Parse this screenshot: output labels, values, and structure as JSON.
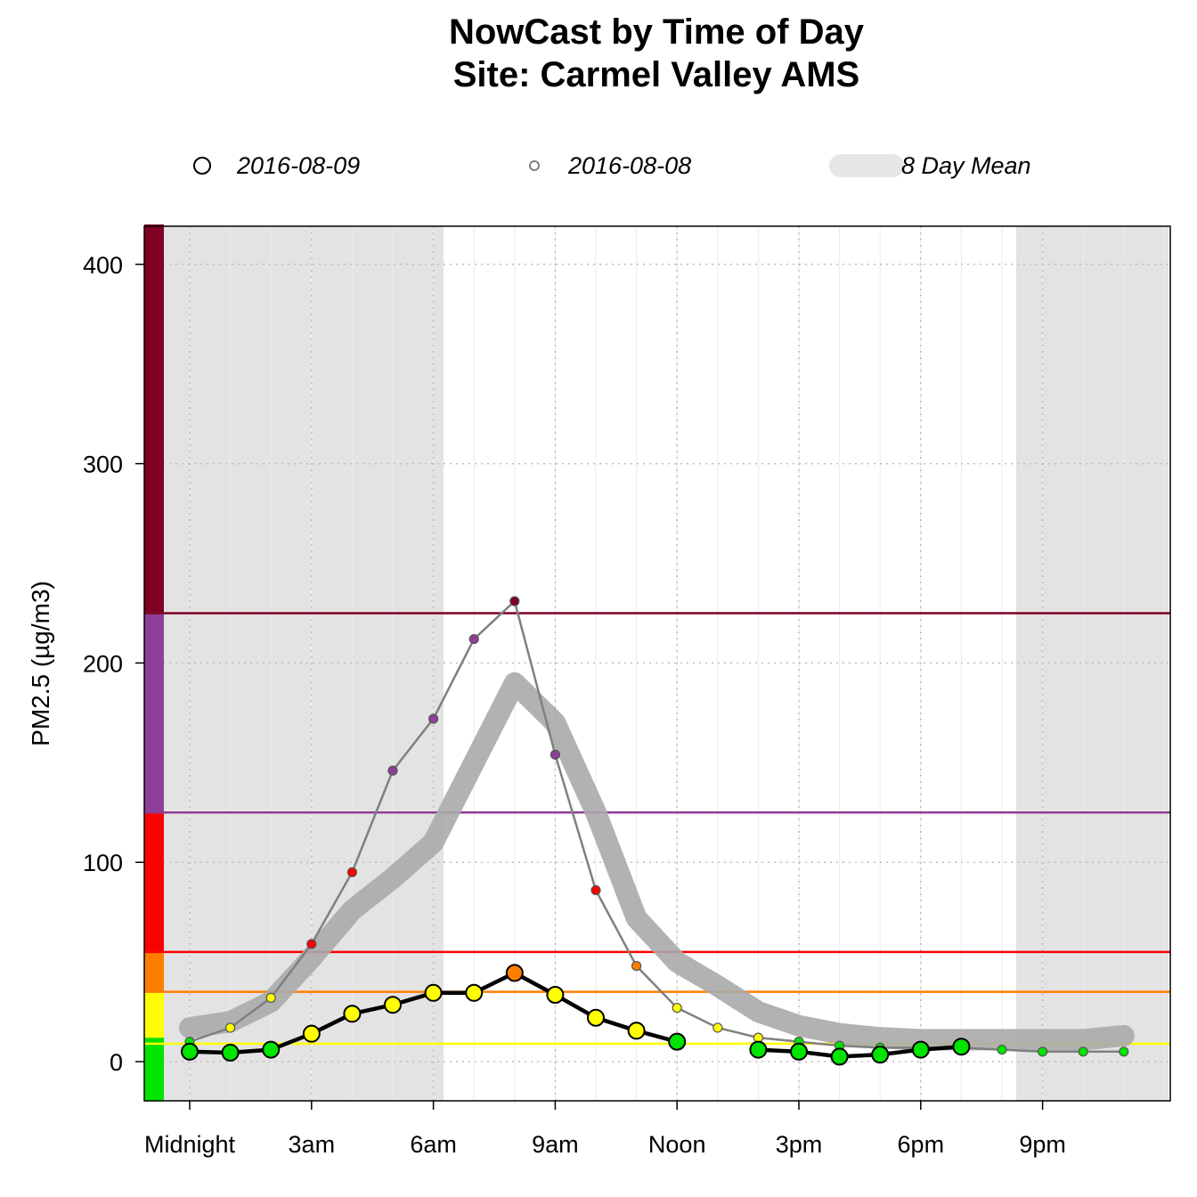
{
  "title_line1": "NowCast by Time of Day",
  "title_line2": "Site: Carmel Valley AMS",
  "legend": {
    "today": "2016-08-09",
    "yesterday": "2016-08-08",
    "mean": "8 Day Mean"
  },
  "chart_data": {
    "type": "line",
    "ylabel": "PM2.5 (µg/m3)",
    "ylim": [
      -20,
      420
    ],
    "yticks": [
      0,
      100,
      200,
      300,
      400
    ],
    "xticks": [
      {
        "hour": 0,
        "label": "Midnight"
      },
      {
        "hour": 3,
        "label": "3am"
      },
      {
        "hour": 6,
        "label": "6am"
      },
      {
        "hour": 9,
        "label": "9am"
      },
      {
        "hour": 12,
        "label": "Noon"
      },
      {
        "hour": 15,
        "label": "3pm"
      },
      {
        "hour": 18,
        "label": "6pm"
      },
      {
        "hour": 21,
        "label": "9pm"
      }
    ],
    "night_shading_hours": [
      [
        -1.0,
        6.25
      ],
      [
        20.35,
        24.1
      ]
    ],
    "aqi_breaks": [
      {
        "value": 12,
        "color": "#00E400"
      },
      {
        "value": 35.5,
        "color": "#FFFF00"
      },
      {
        "value": 55.5,
        "color": "#FF7E00"
      },
      {
        "value": 125.5,
        "color": "#FF0000"
      },
      {
        "value": 225.5,
        "color": "#8F3F97"
      },
      {
        "value": 500,
        "color": "#7E0023"
      }
    ],
    "aqi_lines": [
      {
        "value": 9,
        "color": "#FFFF00"
      },
      {
        "value": 35,
        "color": "#FF7E00"
      },
      {
        "value": 55,
        "color": "#FF0000"
      },
      {
        "value": 125,
        "color": "#8F3F97"
      },
      {
        "value": 225,
        "color": "#7E0023"
      }
    ],
    "series": [
      {
        "name": "8 Day Mean",
        "color": "#AAAAAA",
        "hours": [
          0,
          1,
          2,
          3,
          4,
          5,
          6,
          7,
          8,
          9,
          10,
          11,
          12,
          13,
          14,
          15,
          16,
          17,
          18,
          19,
          20,
          21,
          22,
          23
        ],
        "values": [
          17,
          20,
          30,
          52,
          76,
          92,
          110,
          150,
          190,
          170,
          125,
          72,
          50,
          38,
          25,
          18,
          14,
          12,
          11,
          11,
          11,
          11,
          11,
          13
        ]
      },
      {
        "name": "2016-08-08",
        "color": "#808080",
        "hours": [
          0,
          1,
          2,
          3,
          4,
          5,
          6,
          7,
          8,
          9,
          10,
          11,
          12,
          13,
          14,
          15,
          16,
          17,
          18,
          19,
          20,
          21,
          22,
          23
        ],
        "values": [
          10,
          17,
          32,
          59,
          95,
          146,
          172,
          212,
          231,
          154,
          86,
          48,
          27,
          17,
          12,
          10,
          8,
          7,
          7,
          7,
          6,
          5,
          5,
          5
        ]
      },
      {
        "name": "2016-08-09",
        "color": "#000000",
        "segments": [
          {
            "hours": [
              0,
              1,
              2,
              3,
              4,
              5,
              6,
              7,
              8,
              9,
              10,
              11,
              12
            ],
            "values": [
              5,
              4.5,
              6,
              14,
              24,
              28.5,
              34.5,
              34.5,
              44.5,
              33.5,
              22,
              15.5,
              10
            ]
          },
          {
            "hours": [
              14,
              15,
              16,
              17,
              18,
              19
            ],
            "values": [
              6,
              5,
              2.5,
              3.5,
              6,
              7.5
            ]
          }
        ]
      }
    ]
  }
}
